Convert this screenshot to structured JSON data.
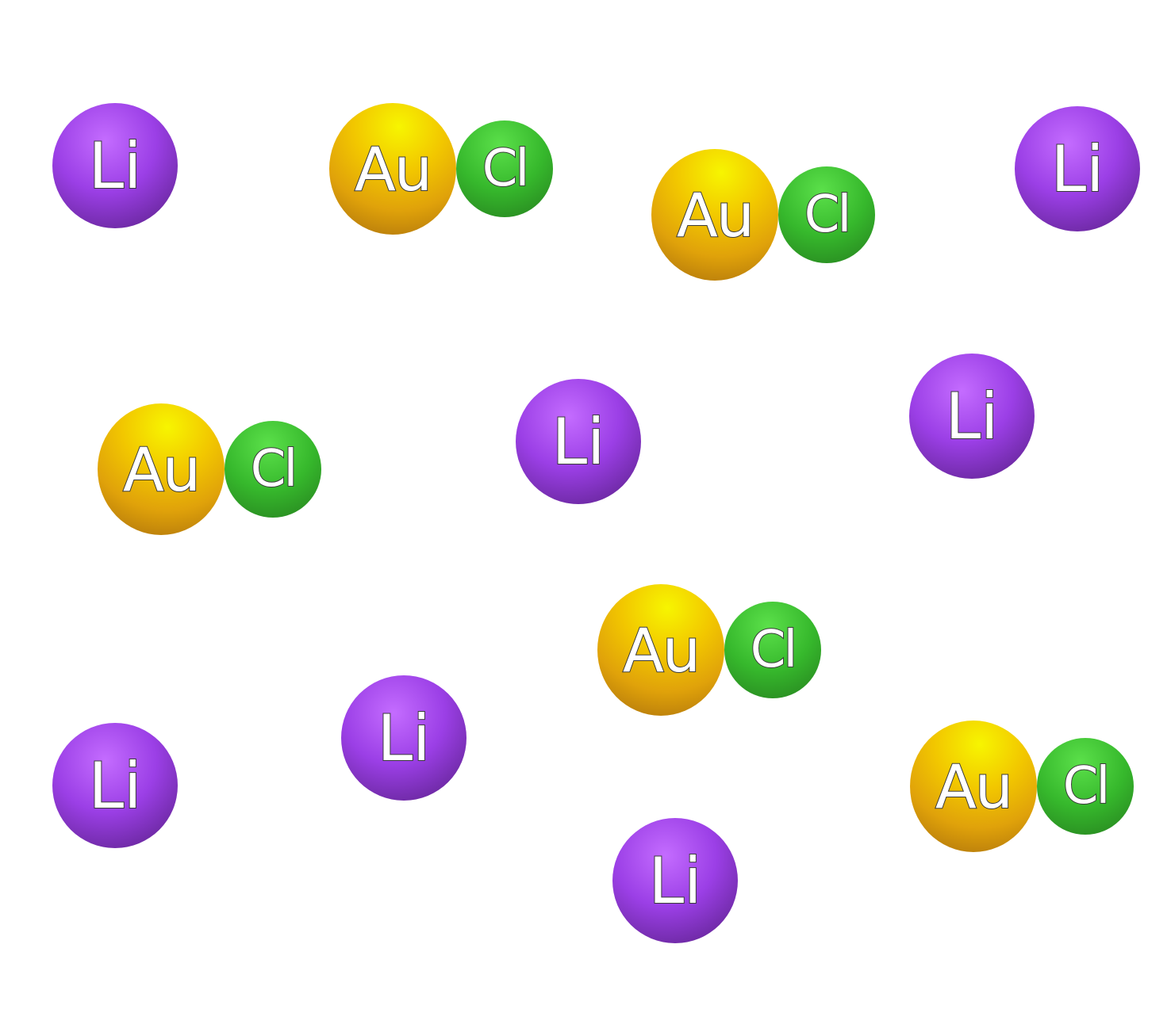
{
  "labels": {
    "lithium": "Li",
    "gold": "Au",
    "chlorine": "Cl"
  },
  "colors": {
    "lithium": "#9b3fe6",
    "gold": "#f2c700",
    "chlorine": "#36b82c"
  }
}
